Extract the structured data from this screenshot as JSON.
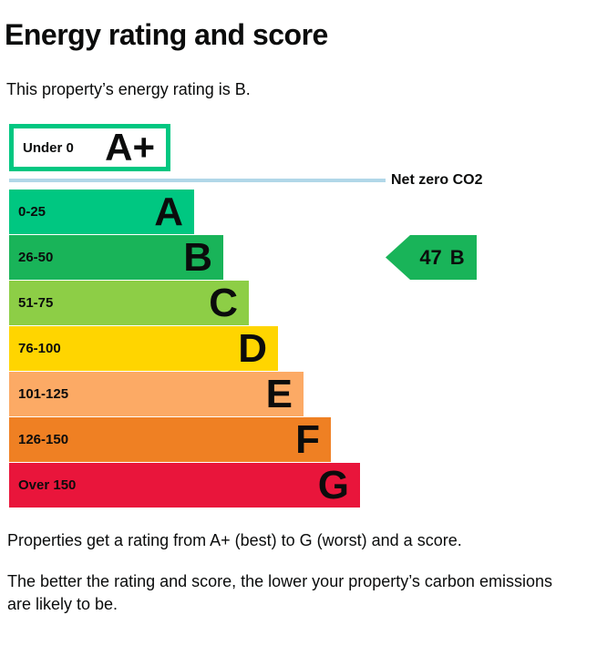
{
  "page": {
    "title": "Energy rating and score",
    "intro": "This property’s energy rating is B.",
    "footer_rating": "Properties get a rating from A+ (best) to G (worst) and a score.",
    "footer_score_lines": [
      "The better the rating and score, the lower your property’s carbon emissions",
      "are likely to be."
    ]
  },
  "chart_data": {
    "type": "bar",
    "orientation": "horizontal",
    "title": "Energy rating and score",
    "subtitle": "This property’s energy rating is B.",
    "categories": [
      "A+",
      "A",
      "B",
      "C",
      "D",
      "E",
      "F",
      "G"
    ],
    "bands": [
      {
        "rating": "A+",
        "range": "Under 0",
        "color": "#ffffff",
        "border_color": "#00c781"
      },
      {
        "rating": "A",
        "range": "0-25",
        "color": "#00c781"
      },
      {
        "rating": "B",
        "range": "26-50",
        "color": "#19b459"
      },
      {
        "rating": "C",
        "range": "51-75",
        "color": "#8dce46"
      },
      {
        "rating": "D",
        "range": "76-100",
        "color": "#ffd500"
      },
      {
        "rating": "E",
        "range": "101-125",
        "color": "#fcaa65"
      },
      {
        "rating": "F",
        "range": "126-150",
        "color": "#ef8023"
      },
      {
        "rating": "G",
        "range": "Over 150",
        "color": "#e9153b"
      }
    ],
    "net_zero": {
      "label": "Net zero CO2",
      "line_color": "#b1d7e8"
    },
    "marker": {
      "value": "47",
      "rating": "B",
      "color": "#19b459"
    },
    "text_color": "#0b0c0c"
  }
}
